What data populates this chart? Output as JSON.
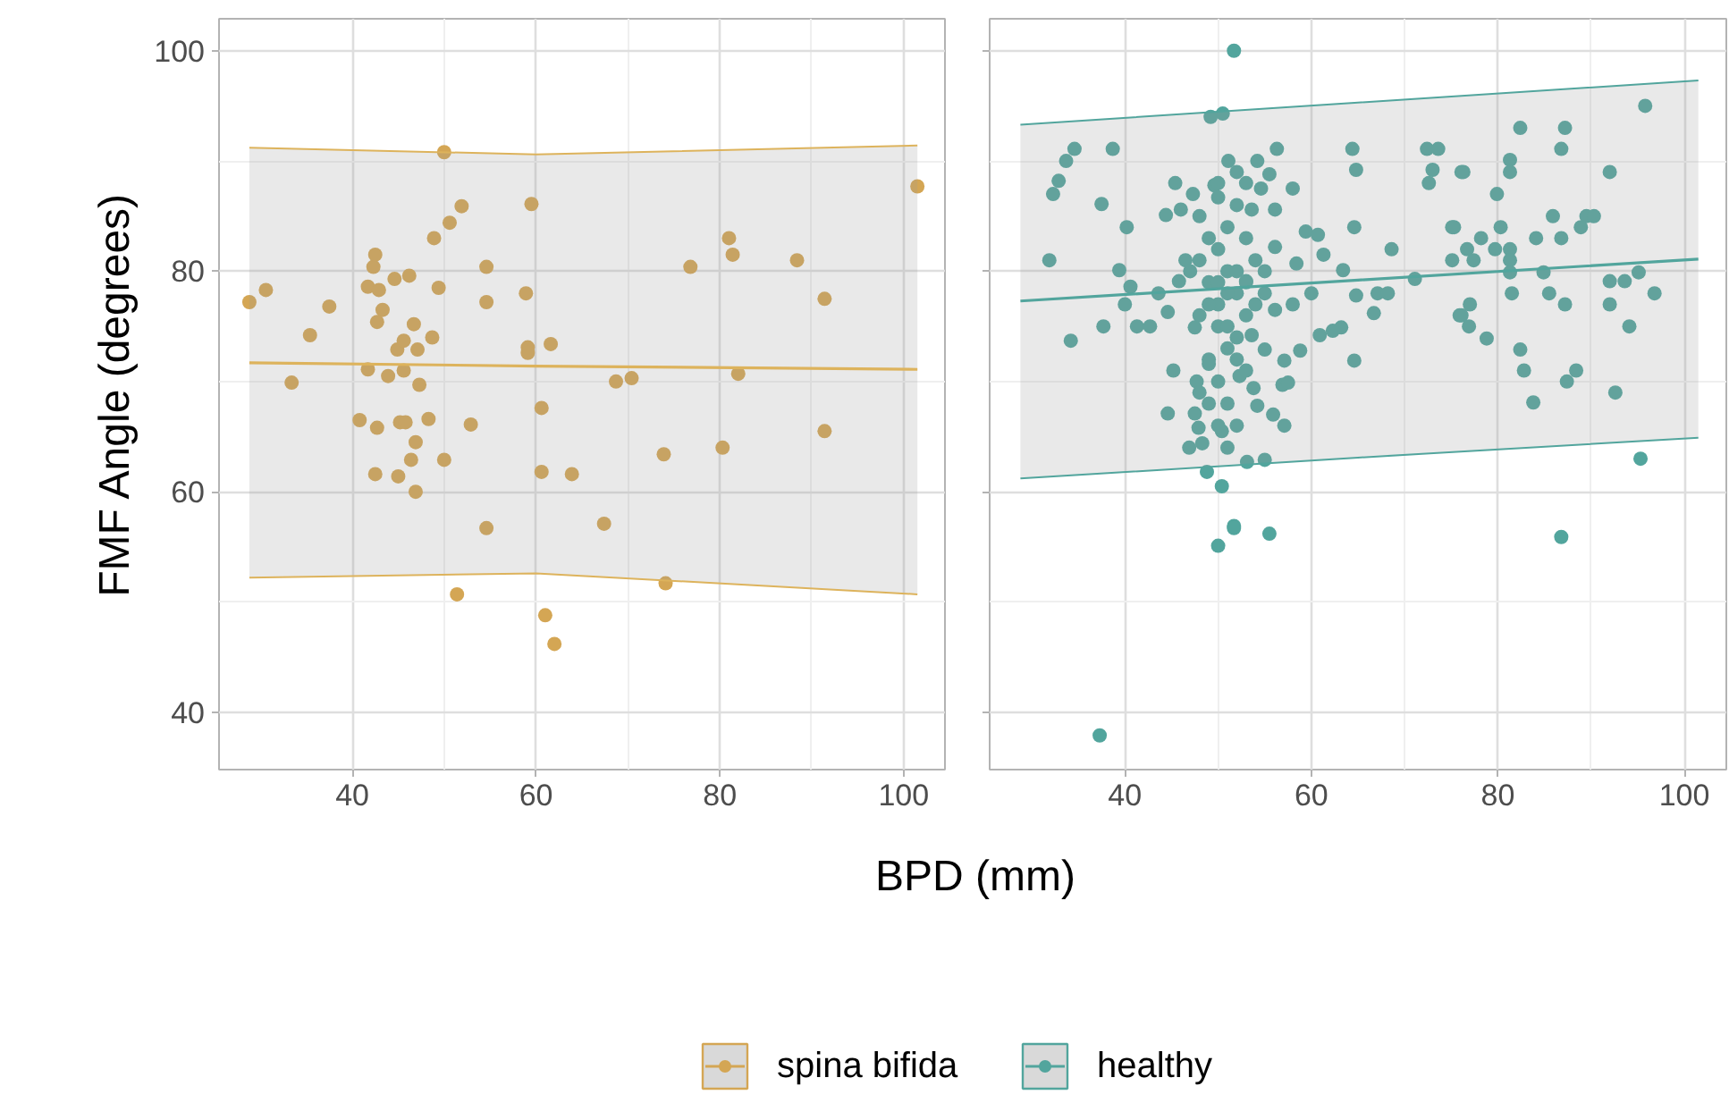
{
  "chart_data": [
    {
      "type": "scatter",
      "xlabel": "BPD (mm)",
      "ylabel": "FMF Angle (degrees)",
      "xlim": [
        25.5,
        104.5
      ],
      "ylim": [
        34.8,
        102.9
      ],
      "xticks": [
        40,
        60,
        80,
        100
      ],
      "yticks": [
        40,
        60,
        80,
        100
      ],
      "grid": true,
      "legend": "bottom",
      "series": [
        {
          "name": "spina bifida",
          "color": "#d4a654",
          "x": [
            28.8,
            30.6,
            33.4,
            35.4,
            37.5,
            40.8,
            41.7,
            41.7,
            42.3,
            42.5,
            42.7,
            42.5,
            42.9,
            43.3,
            42.7,
            43.9,
            44.6,
            44.9,
            45.0,
            45.2,
            45.6,
            45.6,
            45.8,
            46.2,
            46.4,
            46.7,
            46.9,
            46.9,
            47.1,
            47.3,
            48.3,
            48.7,
            48.9,
            49.4,
            50.0,
            50.0,
            50.6,
            51.4,
            51.9,
            52.9,
            54.6,
            54.6,
            54.6,
            58.9,
            59.1,
            59.1,
            59.5,
            60.6,
            60.6,
            61.0,
            61.6,
            62.0,
            63.9,
            67.4,
            68.7,
            70.4,
            73.9,
            74.1,
            76.8,
            80.3,
            81.0,
            81.4,
            82.0,
            88.4,
            91.4,
            91.4,
            101.5
          ],
          "values": [
            77.2,
            78.3,
            69.9,
            74.2,
            76.8,
            66.5,
            71.1,
            78.6,
            80.4,
            81.5,
            65.8,
            61.6,
            78.3,
            76.5,
            75.4,
            70.5,
            79.3,
            72.9,
            61.4,
            66.3,
            73.7,
            71.0,
            66.3,
            79.6,
            62.9,
            75.2,
            64.5,
            60.0,
            72.9,
            69.7,
            66.6,
            74.0,
            83.0,
            78.5,
            90.8,
            62.9,
            84.4,
            50.7,
            85.9,
            66.1,
            56.7,
            80.4,
            77.2,
            78.0,
            73.1,
            72.6,
            86.1,
            67.6,
            61.8,
            48.8,
            73.4,
            46.2,
            61.6,
            57.1,
            70.0,
            70.3,
            63.4,
            51.7,
            80.4,
            64.0,
            83.0,
            81.5,
            70.7,
            81.0,
            77.5,
            65.5,
            87.7
          ]
        },
        {
          "type": "line",
          "color": "#ddb35c",
          "x": [
            28.8,
            60,
            101.5
          ],
          "values": [
            71.7,
            71.4,
            71.1
          ],
          "lower": [
            52.2,
            52.6,
            50.7
          ],
          "upper": [
            91.2,
            90.6,
            91.4
          ]
        },
        {
          "type": "line",
          "color": "#ddb35c",
          "x": [
            28.8,
            60,
            101.5
          ],
          "values": [
            52.2,
            52.6,
            50.7
          ]
        },
        {
          "type": "line",
          "color": "#ddb35c",
          "x": [
            28.8,
            60,
            101.5
          ],
          "values": [
            91.2,
            90.6,
            91.4
          ]
        }
      ]
    },
    {
      "type": "scatter",
      "xlim": [
        25.5,
        104.5
      ],
      "ylim": [
        34.8,
        102.9
      ],
      "xticks": [
        40,
        60,
        80,
        100
      ],
      "yticks": [
        40,
        60,
        80,
        100
      ],
      "grid": true,
      "legend": "bottom",
      "tick_labels": "x",
      "series": [
        {
          "name": "healthy",
          "color": "#52a59d",
          "x": [
            51.7,
            49.2,
            50.5,
            34.6,
            33.7,
            38.7,
            32.9,
            32.3,
            37.5,
            40.2,
            45.4,
            47.3,
            31.9,
            39.4,
            40.6,
            40.0,
            43.6,
            44.6,
            37.7,
            41.3,
            42.7,
            34.2,
            47.5,
            45.8,
            44.4,
            46.0,
            46.5,
            45.2,
            49.0,
            47.7,
            44.6,
            47.5,
            47.9,
            46.9,
            48.3,
            50.4,
            48.8,
            50.4,
            50.0,
            51.7,
            37.3,
            51.1,
            49.6,
            50.0,
            56.3,
            54.2,
            55.5,
            54.6,
            58.0,
            64.4,
            64.8,
            72.4,
            73.6,
            73.0,
            72.6,
            76.1,
            64.6,
            75.1,
            68.6,
            59.4,
            60.7,
            61.3,
            58.4,
            63.4,
            71.1,
            75.1,
            60.0,
            64.8,
            67.1,
            68.2,
            66.7,
            75.9,
            63.2,
            60.9,
            62.3,
            64.6,
            58.8,
            57.1,
            56.9,
            57.5,
            53.8,
            54.2,
            55.9,
            57.1,
            55.0,
            53.1,
            51.7,
            55.5,
            56.1,
            53.6,
            56.1,
            53.0,
            56.1,
            58.0,
            53.6,
            55.0,
            52.3,
            95.8,
            82.4,
            87.2,
            86.8,
            81.3,
            81.3,
            76.3,
            92.0,
            79.9,
            85.9,
            89.5,
            90.3,
            88.9,
            80.3,
            75.3,
            84.1,
            86.8,
            78.2,
            76.7,
            79.7,
            81.3,
            77.4,
            81.3,
            81.3,
            84.9,
            95.1,
            92.0,
            93.6,
            81.5,
            85.5,
            96.8,
            87.2,
            92.0,
            77.0,
            76.1,
            76.9,
            94.1,
            78.8,
            82.4,
            82.8,
            88.4,
            87.4,
            92.6,
            83.8,
            95.3,
            86.8,
            48,
            49,
            50,
            51,
            52,
            50,
            49,
            51,
            52,
            53,
            54,
            50,
            51,
            52,
            49,
            50,
            51,
            52,
            53,
            48,
            47,
            48,
            50,
            52,
            53,
            51,
            52,
            53,
            50,
            49,
            51,
            52,
            53,
            50,
            51,
            49,
            48,
            54,
            55,
            55
          ],
          "values": [
            100.0,
            94.0,
            94.3,
            91.1,
            90.0,
            91.1,
            88.2,
            87.0,
            86.1,
            84.0,
            88.0,
            87.0,
            81.0,
            80.1,
            78.6,
            77.0,
            78.0,
            76.3,
            75.0,
            75.0,
            75.0,
            73.7,
            74.9,
            79.1,
            85.1,
            85.6,
            81.0,
            71.0,
            71.6,
            70.0,
            67.1,
            67.1,
            65.8,
            64.0,
            64.4,
            65.5,
            61.8,
            60.5,
            55.1,
            56.9,
            37.9,
            90.0,
            87.8,
            86.7,
            91.1,
            90.0,
            88.8,
            87.5,
            87.5,
            91.1,
            89.2,
            91.1,
            91.1,
            89.2,
            88.0,
            89.0,
            84.0,
            84.0,
            82.0,
            83.6,
            83.3,
            81.5,
            80.7,
            80.1,
            79.3,
            81.0,
            78.0,
            77.8,
            78.0,
            78.0,
            76.2,
            76.0,
            74.9,
            74.2,
            74.6,
            71.9,
            72.8,
            71.9,
            69.7,
            69.9,
            69.4,
            67.8,
            67.0,
            66.0,
            62.9,
            62.7,
            56.7,
            56.2,
            82.2,
            85.6,
            85.6,
            79.1,
            76.5,
            77.0,
            74.2,
            72.9,
            70.5,
            95.0,
            93.0,
            93.0,
            91.1,
            90.1,
            89.0,
            89.0,
            89.0,
            87.0,
            85.0,
            85.0,
            85.0,
            84.0,
            84.0,
            84.0,
            83.0,
            83.0,
            83.0,
            82.0,
            82.0,
            82.0,
            81.0,
            81.0,
            79.9,
            79.9,
            79.9,
            79.1,
            79.1,
            78.0,
            78.0,
            78.0,
            77.0,
            77.0,
            77.0,
            76.0,
            75.0,
            75.0,
            73.9,
            72.9,
            71.0,
            71.0,
            70.0,
            69.0,
            68.1,
            63.0,
            55.9,
            85,
            83,
            82,
            80,
            78,
            77,
            79,
            84,
            86,
            83,
            81,
            75,
            73,
            72,
            72,
            70,
            68,
            66,
            76,
            76,
            80,
            81,
            88,
            89,
            88,
            78,
            80,
            79,
            79,
            77,
            75,
            74,
            71,
            66,
            64,
            68,
            69,
            77,
            80,
            78
          ]
        },
        {
          "type": "line",
          "color": "#52a59d",
          "x": [
            28.8,
            65,
            101.5
          ],
          "values": [
            77.3,
            79.2,
            81.1
          ],
          "lower": [
            61.2,
            63.1,
            64.9
          ],
          "upper": [
            93.3,
            95.3,
            97.3
          ]
        },
        {
          "type": "line",
          "color": "#52a59d",
          "x": [
            28.8,
            65,
            101.5
          ],
          "values": [
            61.2,
            63.1,
            64.9
          ]
        },
        {
          "type": "line",
          "color": "#52a59d",
          "x": [
            28.8,
            65,
            101.5
          ],
          "values": [
            93.3,
            95.3,
            97.3
          ]
        }
      ]
    }
  ]
}
